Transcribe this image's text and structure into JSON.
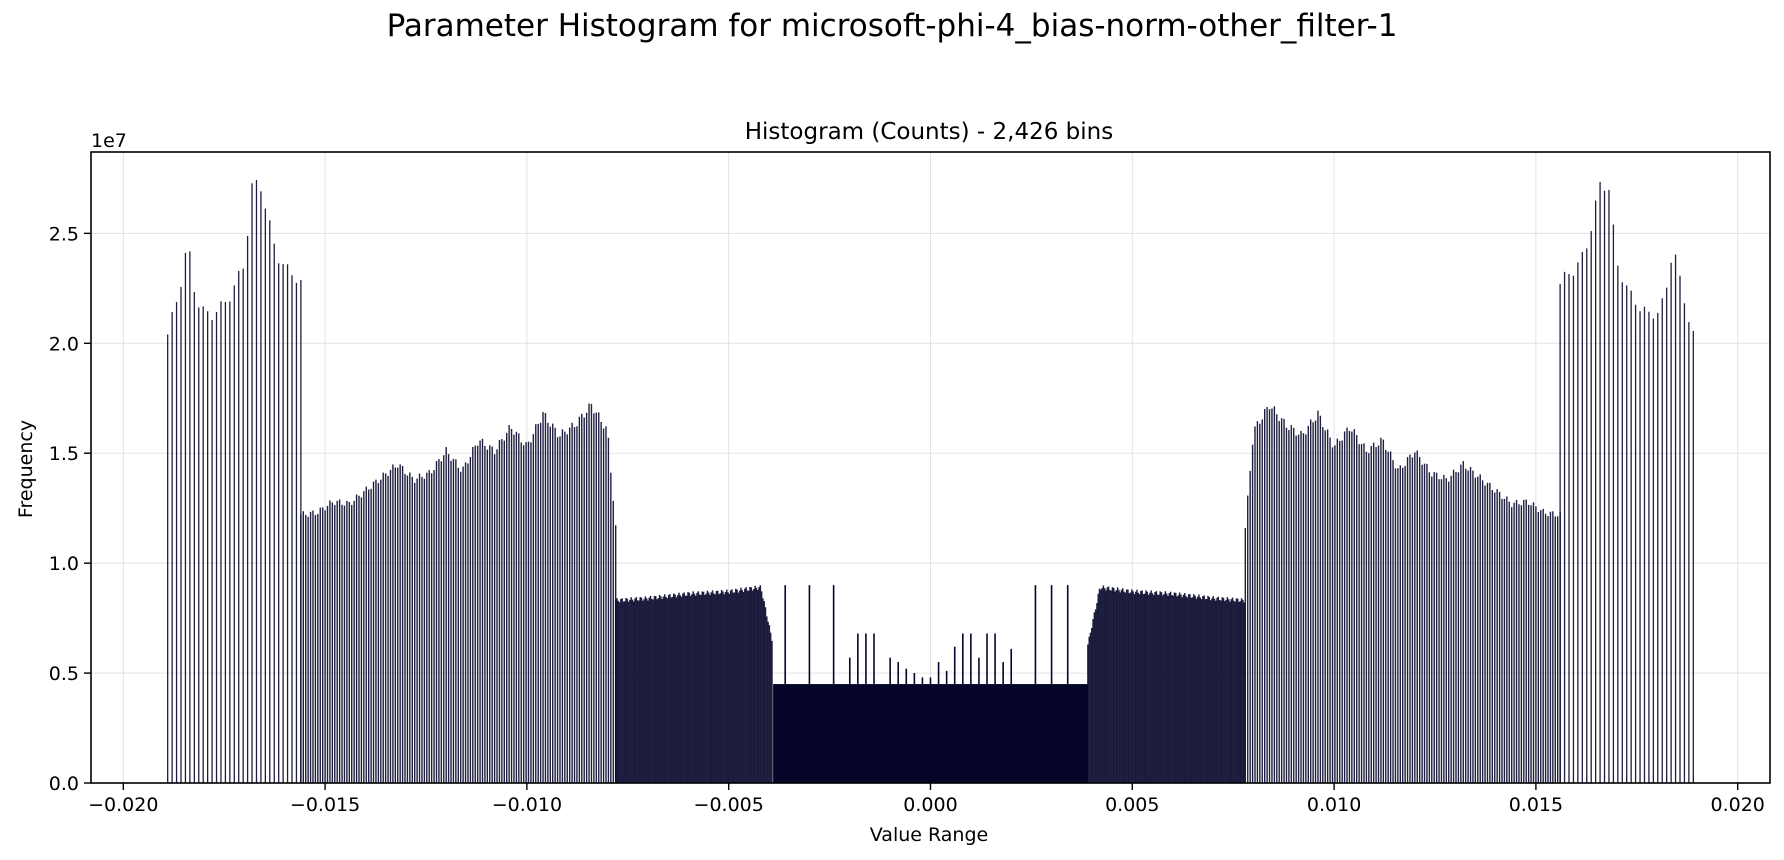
{
  "figure": {
    "suptitle": "Parameter Histogram for microsoft-phi-4_bias-norm-other_filter-1"
  },
  "chart_data": {
    "type": "bar",
    "title": "Histogram (Counts) - 2,426 bins",
    "xlabel": "Value Range",
    "ylabel": "Frequency",
    "y_offset_label": "1e7",
    "xlim": [
      -0.0208,
      0.0208
    ],
    "ylim": [
      0,
      28700000
    ],
    "grid": true,
    "bar_color": "#05052a",
    "x_ticks": [
      -0.02,
      -0.015,
      -0.01,
      -0.005,
      0.0,
      0.005,
      0.01,
      0.015,
      0.02
    ],
    "x_tick_labels": [
      "−0.020",
      "−0.015",
      "−0.010",
      "−0.005",
      "0.000",
      "0.005",
      "0.010",
      "0.015",
      "0.020"
    ],
    "y_ticks": [
      0,
      5000000,
      10000000,
      15000000,
      20000000,
      25000000
    ],
    "y_tick_labels": [
      "0.0",
      "0.5",
      "1.0",
      "1.5",
      "2.0",
      "2.5"
    ],
    "profile": {
      "description_values_in_counts": true,
      "outer_band": {
        "x": [
          -0.0189,
          -0.0186,
          -0.0184,
          -0.0182,
          -0.018,
          -0.0178,
          -0.0176,
          -0.0173,
          -0.017,
          -0.0168,
          -0.0166,
          -0.0164,
          -0.0162,
          -0.016,
          -0.0158,
          -0.0156
        ],
        "y": [
          20400000,
          22500000,
          24600000,
          22000000,
          21400000,
          21300000,
          21600000,
          22300000,
          23700000,
          27200000,
          27300000,
          25500000,
          24100000,
          23400000,
          23200000,
          22700000
        ]
      },
      "upper_middle_band": {
        "x": [
          -0.0156,
          -0.0152,
          -0.0148,
          -0.0144,
          -0.014,
          -0.0136,
          -0.0132,
          -0.0128,
          -0.0124,
          -0.012,
          -0.0116,
          -0.0112,
          -0.0108,
          -0.0104,
          -0.01,
          -0.0096,
          -0.0092,
          -0.0088,
          -0.0084,
          -0.008,
          -0.0078
        ],
        "y": [
          12200000,
          12300000,
          12800000,
          12700000,
          13300000,
          13900000,
          14500000,
          13800000,
          14100000,
          15100000,
          14200000,
          15600000,
          15100000,
          16200000,
          15300000,
          16800000,
          15800000,
          16300000,
          17200000,
          16000000,
          11600000
        ]
      },
      "middle_band": {
        "x": [
          -0.0078,
          -0.007,
          -0.006,
          -0.005,
          -0.0042,
          -0.0039
        ],
        "y": [
          8300000,
          8400000,
          8600000,
          8700000,
          8900000,
          6300000
        ]
      },
      "center_band": {
        "x": [
          -0.0039,
          0.0039
        ],
        "y": [
          4500000,
          4500000
        ]
      },
      "center_spikes": {
        "x": [
          -0.0036,
          -0.003,
          -0.0024,
          -0.002,
          -0.0018,
          -0.0016,
          -0.0014,
          -0.001,
          -0.0008,
          -0.0006,
          -0.0004,
          -0.0002,
          0.0,
          0.0002,
          0.0004,
          0.0006,
          0.0008,
          0.001,
          0.0012,
          0.0014,
          0.0016,
          0.0018,
          0.002,
          0.0026,
          0.003,
          0.0034
        ],
        "y": [
          9000000,
          9000000,
          9000000,
          5700000,
          6800000,
          6800000,
          6800000,
          5700000,
          5500000,
          5200000,
          5000000,
          4800000,
          4800000,
          5500000,
          5100000,
          6200000,
          6800000,
          6800000,
          5700000,
          6800000,
          6800000,
          5500000,
          6100000,
          9000000,
          9000000,
          9000000
        ]
      }
    }
  }
}
